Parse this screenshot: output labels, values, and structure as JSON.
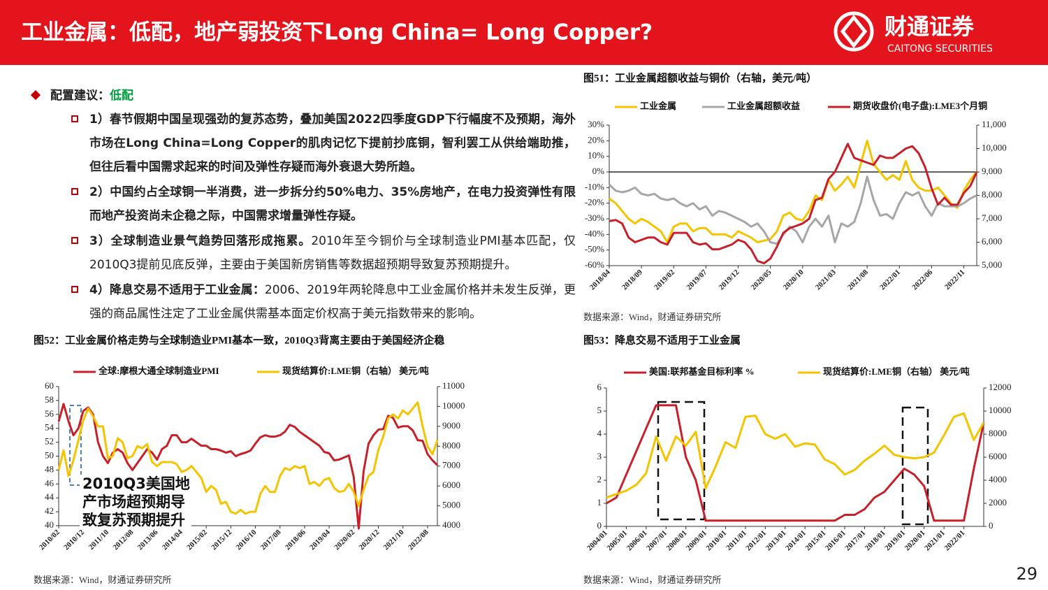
{
  "header": {
    "title": "工业金属：低配，地产弱投资下Long China= Long Copper?",
    "logo_cn": "财通证券",
    "logo_en": "CAITONG SECURITIES"
  },
  "section": {
    "heading_label": "配置建议：",
    "heading_value": "低配",
    "bullets": [
      {
        "bold": "1）春节假期中国呈现强劲的复苏态势，叠加美国2022四季度GDP下行幅度不及预期，海外市场在Long China=Long Copper的肌肉记忆下提前抄底铜，智利罢工从供给端助推，但往后看中国需求起来的时间及弹性存疑而海外衰退大势所趋。"
      },
      {
        "bold": "2）中国约占全球铜一半消费，进一步拆分约50%电力、35%房地产，在电力投资弹性有限而地产投资尚未企稳之际，中国需求增量弹性存疑。"
      },
      {
        "bold": "3）全球制造业景气趋势回落形成拖累。",
        "text": "2010年至今铜价与全球制造业PMI基本匹配，仅2010Q3提前见底反弹，主要由于美国新房销售等数据超预期导致复苏预期提升。"
      },
      {
        "bold": "4）降息交易不适用于工业金属：",
        "text": "2006、2019年两轮降息中工业金属价格并未发生反弹，更强的商品属性注定了工业金属供需基本面定价权高于美元指数带来的影响。"
      }
    ]
  },
  "page_number": "29",
  "chart_data": [
    {
      "type": "line",
      "title": "图51：工业金属超额收益与铜价（右轴，美元/吨）",
      "source": "数据来源：Wind，财通证券研究所",
      "x": [
        "2018/04",
        null,
        null,
        null,
        null,
        "2018/09",
        null,
        null,
        null,
        null,
        "2019/02",
        null,
        null,
        null,
        null,
        "2019/07",
        null,
        null,
        null,
        null,
        "2019/12",
        null,
        null,
        null,
        null,
        "2020/05",
        null,
        null,
        null,
        null,
        "2020/10",
        null,
        null,
        null,
        null,
        "2021/03",
        null,
        null,
        null,
        null,
        "2021/08",
        null,
        null,
        null,
        null,
        "2022/01",
        null,
        null,
        null,
        null,
        "2022/06",
        null,
        null,
        null,
        null,
        "2022/11",
        null,
        null
      ],
      "series": [
        {
          "name": "工业金属",
          "color": "#f5c400",
          "values": [
            -17,
            -20,
            -25,
            -30,
            -33,
            -30,
            -32,
            -35,
            -38,
            -45,
            -35,
            -33,
            -33,
            -38,
            -36,
            -36,
            -40,
            -40,
            -40,
            -42,
            -38,
            -40,
            -42,
            -45,
            -44,
            -43,
            -38,
            -28,
            -26,
            -30,
            -31,
            -25,
            -15,
            -18,
            -5,
            -12,
            -8,
            -3,
            -10,
            5,
            20,
            5,
            0,
            -5,
            -2,
            -5,
            7,
            -5,
            -10,
            -12,
            -12,
            -10,
            -15,
            -20,
            -23,
            -12,
            -5,
            0
          ]
        },
        {
          "name": "工业金属超额收益",
          "color": "#a6a6a6",
          "values": [
            -8,
            -12,
            -13,
            -12,
            -10,
            -14,
            -15,
            -14,
            -17,
            -18,
            -17,
            -20,
            -22,
            -20,
            -24,
            -22,
            -28,
            -25,
            -26,
            -28,
            -30,
            -32,
            -35,
            -33,
            -38,
            -45,
            -46,
            -40,
            -35,
            -38,
            -45,
            -35,
            -30,
            -35,
            -28,
            -45,
            -33,
            -35,
            -32,
            -20,
            -3,
            -18,
            -28,
            -27,
            -30,
            -20,
            -13,
            -15,
            -13,
            -22,
            -28,
            -20,
            -22,
            -22,
            -22,
            -20,
            -17,
            -15
          ]
        },
        {
          "name": "期货收盘价(电子盘):LME3个月铜",
          "color": "#c8202a",
          "axis": "y2",
          "values": [
            6900,
            6950,
            6800,
            6200,
            6000,
            6100,
            6200,
            6200,
            6000,
            5900,
            6400,
            6400,
            6400,
            6000,
            5900,
            5950,
            5700,
            5700,
            5800,
            5900,
            6100,
            6000,
            5700,
            5200,
            5100,
            5300,
            5800,
            6400,
            6600,
            6700,
            6800,
            7000,
            7800,
            7900,
            8700,
            9000,
            9600,
            10200,
            9600,
            9500,
            9400,
            9300,
            9700,
            9600,
            9600,
            9800,
            10000,
            10100,
            9800,
            9200,
            8300,
            7600,
            7900,
            7600,
            7600,
            8100,
            8400,
            9000
          ]
        }
      ],
      "ylim": [
        -60,
        30
      ],
      "yticks": [
        {
          "value": 30,
          "label": "30%"
        },
        {
          "value": 20,
          "label": "20%"
        },
        {
          "value": 10,
          "label": "10%"
        },
        {
          "value": 0,
          "label": "0%"
        },
        {
          "value": -10,
          "label": "-10%"
        },
        {
          "value": -20,
          "label": "-20%"
        },
        {
          "value": -30,
          "label": "-30%"
        },
        {
          "value": -40,
          "label": "-40%"
        },
        {
          "value": -50,
          "label": "-50%"
        },
        {
          "value": -60,
          "label": "-60%"
        }
      ],
      "y2lim": [
        5000,
        11000
      ],
      "y2ticks": [
        {
          "value": 11000,
          "label": "11,000"
        },
        {
          "value": 10000,
          "label": "10,000"
        },
        {
          "value": 9000,
          "label": "9,000"
        },
        {
          "value": 8000,
          "label": "8,000"
        },
        {
          "value": 7000,
          "label": "7,000"
        },
        {
          "value": 6000,
          "label": "6,000"
        },
        {
          "value": 5000,
          "label": "5,000"
        }
      ],
      "zero_line": true
    },
    {
      "type": "line",
      "title": "图52：工业金属价格走势与全球制造业PMI基本一致，2010Q3背离主要由于美国经济企稳",
      "source": "数据来源：Wind，财通证券研究所",
      "annotation": [
        "2010Q3美国地",
        "产市场超预期导",
        "致复苏预期提升"
      ],
      "x": [
        "2010/02",
        null,
        null,
        null,
        null,
        "2010/12",
        null,
        null,
        null,
        null,
        "2011/10",
        null,
        null,
        null,
        null,
        "2012/08",
        null,
        null,
        null,
        null,
        "2013/06",
        null,
        null,
        null,
        null,
        "2014/04",
        null,
        null,
        null,
        null,
        "2015/02",
        null,
        null,
        null,
        null,
        "2015/12",
        null,
        null,
        null,
        null,
        "2016/10",
        null,
        null,
        null,
        null,
        "2017/08",
        null,
        null,
        null,
        null,
        "2018/06",
        null,
        null,
        null,
        null,
        "2019/04",
        null,
        null,
        null,
        null,
        "2020/02",
        null,
        null,
        null,
        null,
        "2020/12",
        null,
        null,
        null,
        null,
        "2021/10",
        null,
        null,
        null,
        null,
        "2022/08",
        null,
        null
      ],
      "series": [
        {
          "name": "全球:摩根大通全球制造业PMI",
          "color": "#c8202a",
          "values": [
            55,
            57.5,
            55,
            53,
            54,
            56.5,
            57,
            56,
            52,
            50,
            49,
            50.5,
            51,
            50.5,
            49,
            48,
            49,
            50,
            51,
            50.5,
            49.5,
            51,
            51.5,
            53,
            53,
            52,
            52,
            52.5,
            52,
            51.5,
            51.5,
            51,
            51,
            50.8,
            50.5,
            50.7,
            50,
            50.3,
            50.5,
            50.8,
            51.8,
            52.7,
            53,
            52.8,
            52.8,
            53,
            53.5,
            54.5,
            54.2,
            53.5,
            53,
            52.5,
            52,
            51.5,
            50.6,
            50.4,
            49.4,
            49.5,
            49.8,
            50.1,
            47,
            39.6,
            47.8,
            51.8,
            53,
            53.8,
            53.9,
            55.8,
            55.5,
            54.1,
            54.3,
            54.3,
            53.7,
            52.3,
            52.2,
            50.3,
            49.4,
            48.7
          ]
        },
        {
          "name": "现货结算价:LME铜（右轴） 美元/吨",
          "color": "#f5c400",
          "axis": "y2",
          "values": [
            6800,
            7800,
            6500,
            7300,
            8300,
            9300,
            9900,
            9500,
            9000,
            9000,
            7400,
            7500,
            8400,
            8200,
            7400,
            7500,
            8000,
            7900,
            8100,
            7200,
            7000,
            7200,
            7200,
            7200,
            7100,
            6700,
            6800,
            7000,
            6700,
            6400,
            5700,
            6000,
            5800,
            5100,
            5200,
            4700,
            4600,
            4800,
            4600,
            4700,
            4700,
            5600,
            6000,
            5700,
            5700,
            6500,
            6900,
            6800,
            7000,
            6900,
            7000,
            6100,
            6200,
            6000,
            6300,
            6400,
            5900,
            5700,
            5750,
            6100,
            5700,
            5000,
            5800,
            6500,
            6700,
            7800,
            8500,
            9400,
            9600,
            9400,
            9800,
            9600,
            9900,
            10200,
            9000,
            8000,
            7600,
            8300
          ]
        }
      ],
      "ylim": [
        40,
        60
      ],
      "yticks": [
        60,
        58,
        56,
        54,
        52,
        50,
        48,
        46,
        44,
        42,
        40
      ],
      "y2lim": [
        4000,
        11000
      ],
      "y2ticks": [
        11000,
        10000,
        9000,
        8000,
        7000,
        6000,
        5000,
        4000
      ]
    },
    {
      "type": "line",
      "title": "图53：降息交易不适用于工业金属",
      "source": "数据来源：Wind，财通证券研究所",
      "x": [
        "2004/01",
        null,
        "2005/01",
        null,
        "2006/01",
        null,
        "2007/01",
        null,
        "2008/01",
        null,
        "2009/01",
        null,
        "2010/01",
        null,
        "2011/01",
        null,
        "2012/01",
        null,
        "2013/01",
        null,
        "2014/01",
        null,
        "2015/01",
        null,
        "2016/01",
        null,
        "2017/01",
        null,
        "2018/01",
        null,
        "2019/01",
        null,
        "2020/01",
        null,
        "2021/01",
        null,
        "2022/01",
        null,
        null
      ],
      "series": [
        {
          "name": "美国:联邦基金目标利率 %",
          "color": "#c8202a",
          "values": [
            1,
            1.25,
            2.25,
            3.25,
            4.25,
            5.25,
            5.25,
            5.25,
            3,
            2,
            0.25,
            0.25,
            0.25,
            0.25,
            0.25,
            0.25,
            0.25,
            0.25,
            0.25,
            0.25,
            0.25,
            0.25,
            0.25,
            0.25,
            0.5,
            0.5,
            0.75,
            1.25,
            1.5,
            2,
            2.5,
            2.25,
            1.75,
            0.25,
            0.25,
            0.25,
            0.25,
            2.5,
            4.5
          ]
        },
        {
          "name": "现货结算价:LME铜（右轴） 美元/吨",
          "color": "#f5c400",
          "axis": "y2",
          "values": [
            2500,
            2800,
            3100,
            3600,
            4600,
            7800,
            5700,
            7800,
            7000,
            8200,
            3300,
            5200,
            7300,
            6800,
            9500,
            9600,
            8000,
            7600,
            8000,
            6900,
            7200,
            7100,
            5800,
            5400,
            4500,
            4900,
            5700,
            6300,
            7000,
            6200,
            6000,
            5900,
            6000,
            6400,
            7900,
            9500,
            9800,
            7500,
            9000
          ]
        }
      ],
      "ylim": [
        0,
        6
      ],
      "yticks": [
        6,
        5,
        4,
        3,
        2,
        1,
        0
      ],
      "y2lim": [
        0,
        12000
      ],
      "y2ticks": [
        12000,
        10000,
        8000,
        6000,
        4000,
        2000,
        0
      ]
    }
  ]
}
